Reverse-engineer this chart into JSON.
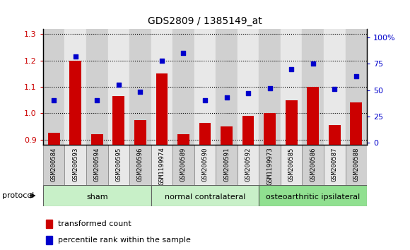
{
  "title": "GDS2809 / 1385149_at",
  "categories": [
    "GSM200584",
    "GSM200593",
    "GSM200594",
    "GSM200595",
    "GSM200596",
    "GSM1199974",
    "GSM200589",
    "GSM200590",
    "GSM200591",
    "GSM200592",
    "GSM1199973",
    "GSM200585",
    "GSM200586",
    "GSM200587",
    "GSM200588"
  ],
  "bar_values": [
    0.925,
    1.2,
    0.92,
    1.065,
    0.975,
    1.15,
    0.92,
    0.965,
    0.95,
    0.99,
    1.0,
    1.05,
    1.1,
    0.955,
    1.04
  ],
  "scatter_values_pct": [
    40,
    82,
    40,
    55,
    48,
    78,
    85,
    40,
    43,
    47,
    52,
    70,
    75,
    51,
    63
  ],
  "bar_color": "#cc0000",
  "scatter_color": "#0000cc",
  "ylim_left": [
    0.88,
    1.32
  ],
  "ylim_right": [
    -2,
    108
  ],
  "yticks_left": [
    0.9,
    1.0,
    1.1,
    1.2,
    1.3
  ],
  "yticks_right": [
    0,
    25,
    50,
    75,
    100
  ],
  "group_configs": [
    {
      "start": 0,
      "end": 5,
      "color": "#c8f0c8",
      "label": "sham"
    },
    {
      "start": 5,
      "end": 10,
      "color": "#c8f0c8",
      "label": "normal contralateral"
    },
    {
      "start": 10,
      "end": 15,
      "color": "#90e090",
      "label": "osteoarthritic ipsilateral"
    }
  ],
  "protocol_label": "protocol",
  "legend_bar_label": "transformed count",
  "legend_scatter_label": "percentile rank within the sample",
  "bar_width": 0.55,
  "cell_color_odd": "#d0d0d0",
  "cell_color_even": "#e8e8e8"
}
